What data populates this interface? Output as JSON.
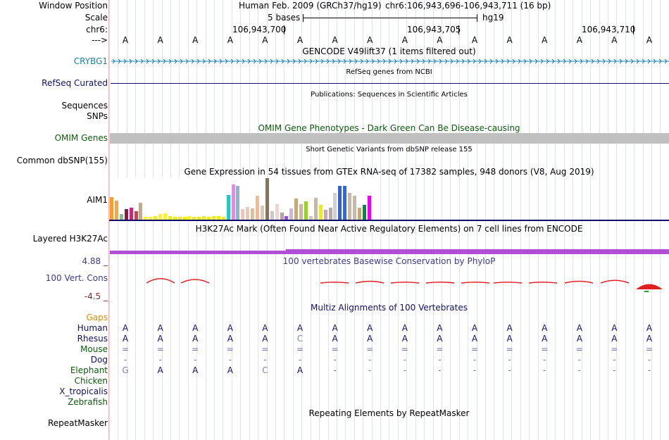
{
  "header": {
    "window_position_label": "Window Position",
    "scale_label": "Scale",
    "chr_label": "chr6:",
    "strand_label": "--->",
    "assembly": "Human Feb. 2009 (GRCh37/hg19)",
    "position": "chr6:106,943,696-106,943,711 (16 bp)",
    "scale_text": "5 bases",
    "scale_db": "hg19",
    "coords": [
      "106,943,700",
      "106,943,705",
      "106,943,710"
    ]
  },
  "reference_bases": [
    "A",
    "A",
    "A",
    "A",
    "A",
    "A",
    "A",
    "A",
    "A",
    "A",
    "A",
    "A",
    "A",
    "A",
    "A",
    "A"
  ],
  "tracks": {
    "gencode": {
      "title": "GENCODE V49lift37 (1 items filtered out)",
      "gene": "CRYBG1"
    },
    "refseq": {
      "title": "RefSeq genes from NCBI",
      "label": "RefSeq Curated"
    },
    "publications": {
      "title": "Publications: Sequences in Scientific Articles",
      "label1": "Sequences",
      "label2": "SNPs"
    },
    "omim": {
      "title": "OMIM Gene Phenotypes - Dark Green Can Be Disease-causing",
      "label": "OMIM Genes"
    },
    "dbsnp": {
      "title": "Short Genetic Variants from dbSNP release 155",
      "label": "Common dbSNP(155)"
    },
    "gtex": {
      "title": "Gene Expression in 54 tissues from GTEx RNA-seq of 17382 samples, 948 donors (V8, Aug 2019)",
      "gene": "AIM1",
      "colors": [
        "#ff9a2e",
        "#f5a84a",
        "#8fbc8f",
        "#8b1a4a",
        "#d1257a",
        "#cc4444",
        "#c9a88a",
        "#ffef30",
        "#ffef30",
        "#eeee20",
        "#ffef30",
        "#ffef30",
        "#eeee00",
        "#eeee00",
        "#eeee00",
        "#eeee00",
        "#ffef30",
        "#eeee00",
        "#eeee00",
        "#eeee00",
        "#eeee00",
        "#eeee00",
        "#eeee00",
        "#eeee00",
        "#26c6c6",
        "#ee82ee",
        "#8ab4d8",
        "#e8c8b8",
        "#e8c8b8",
        "#d8c0a0",
        "#f5b890",
        "#d8c8b8",
        "#8b7355",
        "#c8c8c8",
        "#eed5d2",
        "#b8a0a0",
        "#9b4fd6",
        "#c8b8d8",
        "#c8a878",
        "#c8b8a0",
        "#9acd32",
        "#c8c8c8",
        "#c8b8a8",
        "#eeee00",
        "#c8a8a8",
        "#b8a8a8",
        "#d0d0d0",
        "#3a5fcd",
        "#2e6bd8",
        "#c8b8a8",
        "#c8b8a8",
        "#c8a878",
        "#008b45",
        "#ee00ee"
      ],
      "values": [
        32,
        27,
        8,
        15,
        17,
        12,
        24,
        4,
        4,
        5,
        8,
        9,
        5,
        4,
        4,
        4,
        5,
        4,
        4,
        5,
        4,
        5,
        5,
        4,
        35,
        50,
        48,
        15,
        18,
        16,
        34,
        20,
        59,
        12,
        22,
        10,
        5,
        16,
        30,
        22,
        26,
        5,
        31,
        21,
        14,
        17,
        38,
        48,
        48,
        38,
        34,
        17,
        21,
        34
      ]
    },
    "h3k27ac": {
      "title": "H3K27Ac Mark (Often Found Near Active Regulatory Elements) on 7 cell lines from ENCODE",
      "label": "Layered H3K27Ac"
    },
    "phylop": {
      "title": "100 vertebrates Basewise Conservation by PhyloP",
      "label": "100 Vert. Cons",
      "max": "4.88 _",
      "min": "-4.5 _"
    },
    "multiz": {
      "title": "Multiz Alignments of 100 Vertebrates",
      "gaps_label": "Gaps",
      "species": [
        {
          "name": "Human",
          "color": "#10106b",
          "bases": [
            "A",
            "A",
            "A",
            "A",
            "A",
            "A",
            "A",
            "A",
            "A",
            "A",
            "A",
            "A",
            "A",
            "A",
            "A",
            "A"
          ]
        },
        {
          "name": "Rhesus",
          "color": "#10106b",
          "bases": [
            "A",
            "A",
            "A",
            "A",
            "A",
            "C",
            "A",
            "A",
            "A",
            "A",
            "A",
            "A",
            "A",
            "A",
            "A",
            "A"
          ]
        },
        {
          "name": "Mouse",
          "color": "#0b5c0b",
          "bases": [
            "=",
            "=",
            "=",
            "=",
            "=",
            "=",
            "=",
            "=",
            "=",
            "=",
            "=",
            "=",
            "=",
            "=",
            "=",
            "="
          ]
        },
        {
          "name": "Dog",
          "color": "#10106b",
          "bases": [
            "-",
            "-",
            "-",
            "-",
            "-",
            "-",
            "-",
            "-",
            "-",
            "-",
            "-",
            "-",
            "-",
            "-",
            "-",
            "-"
          ]
        },
        {
          "name": "Elephant",
          "color": "#0b5c0b",
          "bases": [
            "G",
            "A",
            "A",
            "A",
            "C",
            "A",
            "-",
            "-",
            "-",
            "-",
            "-",
            "-",
            "-",
            "-",
            "-",
            "-"
          ]
        },
        {
          "name": "Chicken",
          "color": "#0b5c0b",
          "bases": []
        },
        {
          "name": "X_tropicalis",
          "color": "#10106b",
          "bases": []
        },
        {
          "name": "Zebrafish",
          "color": "#0b5c0b",
          "bases": []
        }
      ]
    },
    "repeatmasker": {
      "title": "Repeating Elements by RepeatMasker",
      "label": "RepeatMasker"
    }
  }
}
